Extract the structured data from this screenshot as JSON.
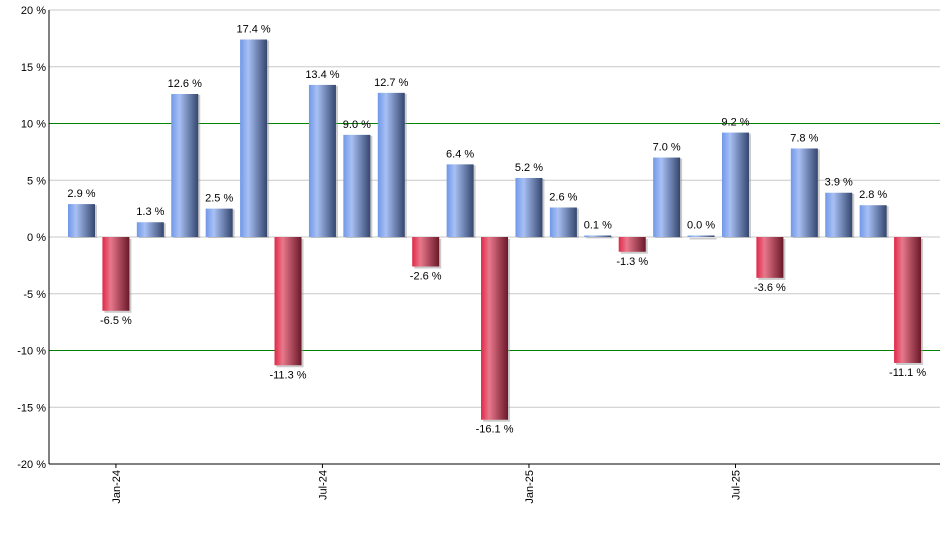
{
  "chart_data": {
    "type": "bar",
    "title": "",
    "xlabel": "",
    "ylabel": "",
    "ylim": [
      -20,
      20
    ],
    "yticks": [
      20,
      15,
      10,
      5,
      0,
      -5,
      -10,
      -15,
      -20
    ],
    "ytick_suffix": " %",
    "grid": true,
    "highlight_lines": [
      10,
      -10
    ],
    "values": [
      2.9,
      -6.5,
      1.3,
      12.6,
      2.5,
      17.4,
      -11.3,
      13.4,
      9.0,
      12.7,
      -2.6,
      6.4,
      -16.1,
      5.2,
      2.6,
      0.1,
      -1.3,
      7.0,
      0.0,
      9.2,
      -3.6,
      7.8,
      3.9,
      2.8,
      -11.1
    ],
    "data_labels": [
      "2.9 %",
      "-6.5 %",
      "1.3 %",
      "12.6 %",
      "2.5 %",
      "17.4 %",
      "-11.3 %",
      "13.4 %",
      "9.0 %",
      "12.7 %",
      "-2.6 %",
      "6.4 %",
      "-16.1 %",
      "5.2 %",
      "2.6 %",
      "0.1 %",
      "-1.3 %",
      "7.0 %",
      "0.0 %",
      "9.2 %",
      "-3.6 %",
      "7.8 %",
      "3.9 %",
      "2.8 %",
      "-11.1 %"
    ],
    "xtick_labels": [
      {
        "label": "Jan-24",
        "bar_index": 1
      },
      {
        "label": "Jul-24",
        "bar_index": 7
      },
      {
        "label": "Jan-25",
        "bar_index": 13
      },
      {
        "label": "Jul-25",
        "bar_index": 19
      }
    ],
    "colors": {
      "positive": "#7a9fe6",
      "positive_dark": "#34466e",
      "negative": "#e03050",
      "negative_dark": "#6e1a2a",
      "grid": "#c8c8c8",
      "highlight": "#008000"
    }
  }
}
